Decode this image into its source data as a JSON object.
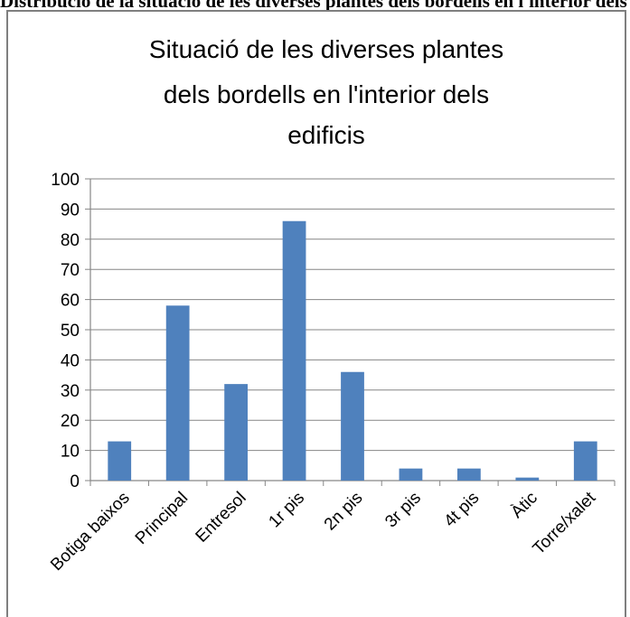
{
  "caption": "Distribució de la situació de les diverses plantes dels bordells en l'interior dels edificis",
  "chart_data": {
    "type": "bar",
    "title_lines": [
      "Situació de les diverses plantes",
      "dels bordells en l'interior dels",
      "edificis"
    ],
    "categories": [
      "Botiga baixos",
      "Principal",
      "Entresol",
      "1r pis",
      "2n pis",
      "3r pis",
      "4t pis",
      "Àtic",
      "Torre/xalet"
    ],
    "values": [
      13,
      58,
      32,
      86,
      36,
      4,
      4,
      1,
      13
    ],
    "yticks": [
      "0",
      "10",
      "20",
      "30",
      "40",
      "50",
      "60",
      "70",
      "80",
      "90",
      "100"
    ],
    "ylim": [
      0,
      100
    ],
    "xlabel": "",
    "ylabel": "",
    "grid": true,
    "legend": "none",
    "colors": {
      "bar": "#4f81bd",
      "grid": "#868686",
      "axis": "#868686",
      "text": "#000000",
      "frame": "#7f7f7f"
    }
  }
}
